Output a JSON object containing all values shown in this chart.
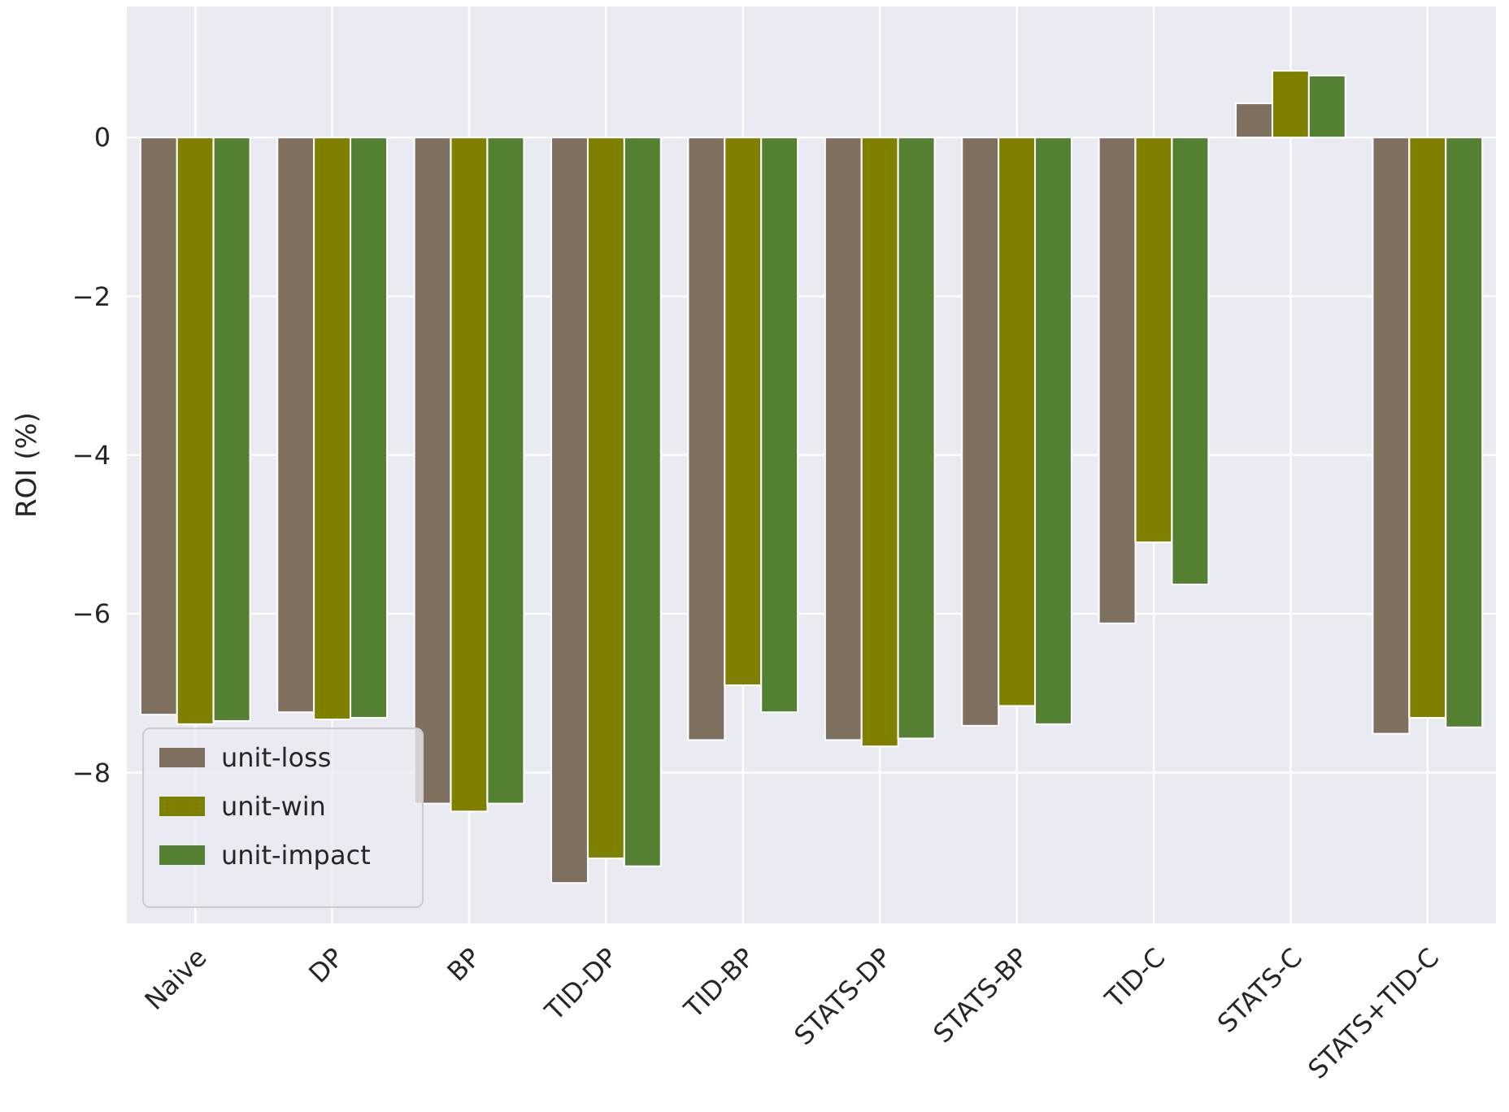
{
  "chart_data": {
    "type": "bar",
    "ylabel": "ROI (%)",
    "categories": [
      "Naive",
      "DP",
      "BP",
      "TID-DP",
      "TID-BP",
      "STATS-DP",
      "STATS-BP",
      "TID-C",
      "STATS-C",
      "STATS+TID-C"
    ],
    "series": [
      {
        "name": "unit-loss",
        "color": "#7f6f5f",
        "values": [
          -7.27,
          -7.24,
          -8.39,
          -9.39,
          -7.59,
          -7.59,
          -7.41,
          -6.12,
          0.43,
          -7.51
        ]
      },
      {
        "name": "unit-win",
        "color": "#808000",
        "values": [
          -7.39,
          -7.33,
          -8.49,
          -9.08,
          -6.9,
          -7.67,
          -7.16,
          -5.1,
          0.84,
          -7.31
        ]
      },
      {
        "name": "unit-impact",
        "color": "#548032",
        "values": [
          -7.35,
          -7.31,
          -8.39,
          -9.18,
          -7.24,
          -7.57,
          -7.39,
          -5.63,
          0.78,
          -7.43
        ]
      }
    ],
    "ylim": [
      -9.9,
      1.65
    ],
    "yticks": [
      {
        "value": 0,
        "label": "0"
      },
      {
        "value": -2,
        "label": "−2"
      },
      {
        "value": -4,
        "label": "−4"
      },
      {
        "value": -6,
        "label": "−6"
      },
      {
        "value": -8,
        "label": "−8"
      }
    ],
    "grid": true,
    "legend": "bottom left"
  }
}
